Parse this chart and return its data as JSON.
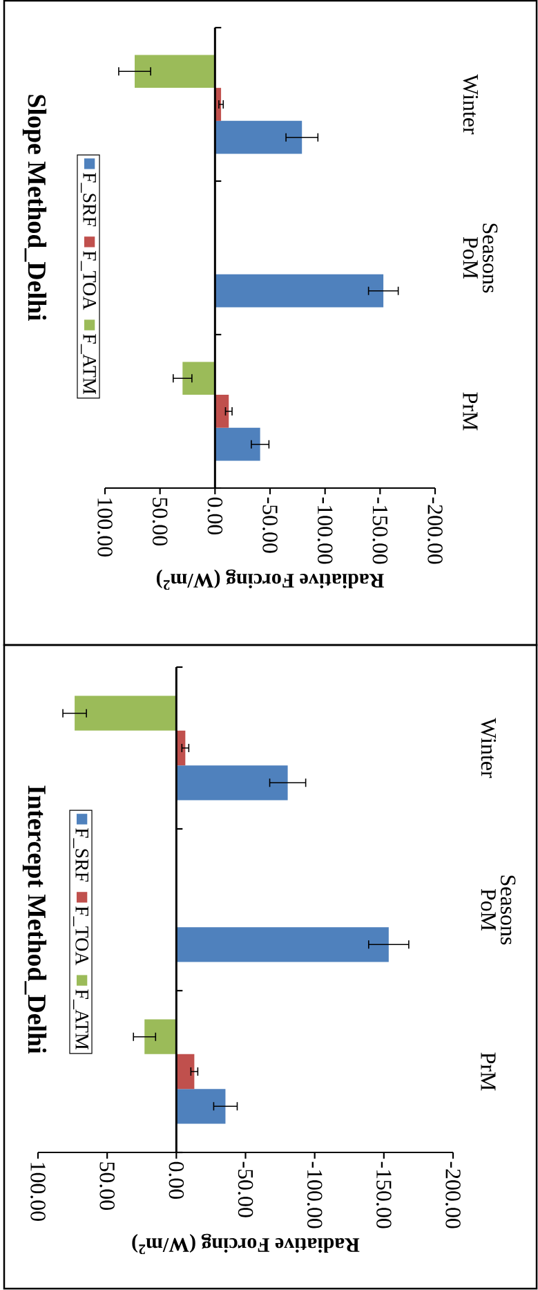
{
  "chart_data": [
    {
      "type": "bar",
      "orientation": "horizontal",
      "title": "Slope Method_Delhi",
      "xlabel": "Radiative Forcing (W/m$^{2}$)",
      "ylabel": "Seasons",
      "categories": [
        "Winter",
        "PoM",
        "PrM"
      ],
      "series": [
        {
          "name": "F_SRF",
          "color": "#4f81bd",
          "values": [
            -79,
            -153,
            -41
          ],
          "errors": [
            14.5,
            13.5,
            8
          ]
        },
        {
          "name": "F_TOA",
          "color": "#c0504d",
          "values": [
            -5.5,
            null,
            -12.5
          ],
          "errors": [
            2,
            null,
            3
          ]
        },
        {
          "name": "F_ATM",
          "color": "#9bbb59",
          "values": [
            73,
            null,
            29.5
          ],
          "errors": [
            14.5,
            null,
            8.5
          ]
        }
      ],
      "xlim": [
        100,
        -200
      ],
      "xticks": [
        {
          "value": 100,
          "label": "100.00"
        },
        {
          "value": 50,
          "label": "50.00"
        },
        {
          "value": 0,
          "label": "0.00"
        },
        {
          "value": -50,
          "label": "-50.00"
        },
        {
          "value": -100,
          "label": "-100.00"
        },
        {
          "value": -150,
          "label": "-150.00"
        },
        {
          "value": -200,
          "label": "-200.00"
        }
      ],
      "legend": "left"
    },
    {
      "type": "bar",
      "orientation": "horizontal",
      "title": "Intercept Method_Delhi",
      "xlabel": "Radiative Forcing (W/m$^{2}$)",
      "ylabel": "Seasons",
      "categories": [
        "Winter",
        "PoM",
        "PrM"
      ],
      "series": [
        {
          "name": "F_SRF",
          "color": "#4f81bd",
          "values": [
            -80.5,
            -153.5,
            -35.5
          ],
          "errors": [
            13,
            14.5,
            8.5
          ]
        },
        {
          "name": "F_TOA",
          "color": "#c0504d",
          "values": [
            -6.5,
            null,
            -13
          ],
          "errors": [
            2.5,
            null,
            2.5
          ]
        },
        {
          "name": "F_ATM",
          "color": "#9bbb59",
          "values": [
            73.5,
            null,
            23
          ],
          "errors": [
            8.5,
            null,
            8
          ]
        }
      ],
      "xlim": [
        100,
        -200
      ],
      "xticks": [
        {
          "value": 100,
          "label": "100.00"
        },
        {
          "value": 50,
          "label": "50.00"
        },
        {
          "value": 0,
          "label": "0.00"
        },
        {
          "value": -50,
          "label": "-50.00"
        },
        {
          "value": -100,
          "label": "-100.00"
        },
        {
          "value": -150,
          "label": "-150.00"
        },
        {
          "value": -200,
          "label": "-200.00"
        }
      ],
      "legend": "left"
    }
  ]
}
